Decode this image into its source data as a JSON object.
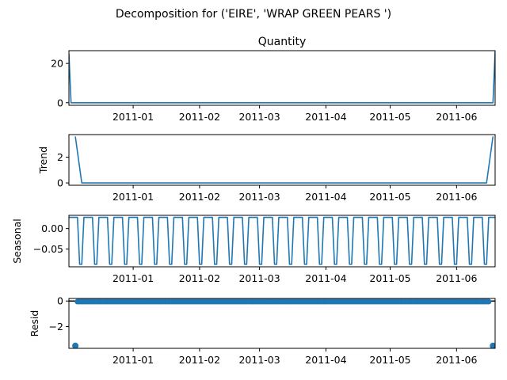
{
  "figure_title": "Decomposition for ('EIRE', 'WRAP GREEN PEARS ')",
  "chart_data": [
    {
      "type": "line",
      "title": "Quantity",
      "ylabel": "",
      "x_range": [
        "2010-12-02",
        "2011-06-19"
      ],
      "ylim": [
        -1.3,
        26.5
      ],
      "yticks": [
        {
          "v": 0,
          "label": "0"
        },
        {
          "v": 20,
          "label": "20"
        }
      ],
      "xticks": [
        "2011-01",
        "2011-02",
        "2011-03",
        "2011-04",
        "2011-05",
        "2011-06"
      ],
      "color": "#1f77b4",
      "series": [
        {
          "x": [
            "2010-12-02",
            "2010-12-03",
            "2011-06-18",
            "2011-06-19"
          ],
          "values": [
            25,
            0,
            0,
            26
          ]
        }
      ]
    },
    {
      "type": "line",
      "title": "",
      "ylabel": "Trend",
      "x_range": [
        "2010-12-02",
        "2011-06-19"
      ],
      "ylim": [
        -0.18,
        3.75
      ],
      "yticks": [
        {
          "v": 0,
          "label": "0"
        },
        {
          "v": 2,
          "label": "2"
        }
      ],
      "xticks": [
        "2011-01",
        "2011-02",
        "2011-03",
        "2011-04",
        "2011-05",
        "2011-06"
      ],
      "color": "#1f77b4",
      "series": [
        {
          "x": [
            "2010-12-05",
            "2010-12-08",
            "2011-06-15",
            "2011-06-18"
          ],
          "values": [
            3.6,
            0,
            0,
            3.6
          ]
        }
      ]
    },
    {
      "type": "line",
      "title": "",
      "ylabel": "Seasonal",
      "x_range": [
        "2010-12-02",
        "2011-06-19"
      ],
      "ylim": [
        -0.093,
        0.032
      ],
      "yticks": [
        {
          "v": 0,
          "label": "0.00"
        },
        {
          "v": -0.05,
          "label": "−0.05"
        }
      ],
      "xticks": [
        "2011-01",
        "2011-02",
        "2011-03",
        "2011-04",
        "2011-05",
        "2011-06"
      ],
      "color": "#1f77b4",
      "seasonal_pattern": [
        0.027,
        0.027,
        0.027,
        0.027,
        0.027,
        -0.087,
        -0.087
      ]
    },
    {
      "type": "scatter",
      "title": "",
      "ylabel": "Resid",
      "x_range": [
        "2010-12-02",
        "2011-06-19"
      ],
      "ylim": [
        -3.7,
        0.2
      ],
      "yticks": [
        {
          "v": 0,
          "label": "0"
        },
        {
          "v": -2,
          "label": "−2"
        }
      ],
      "xticks": [
        "2011-01",
        "2011-02",
        "2011-03",
        "2011-04",
        "2011-05",
        "2011-06"
      ],
      "color": "#1f77b4",
      "zero_line": true,
      "resid_daily_value": -0.05,
      "resid_valid_range": [
        "2010-12-05",
        "2011-06-16"
      ],
      "outliers": [
        {
          "x": "2010-12-05",
          "y": -3.5
        },
        {
          "x": "2011-06-18",
          "y": -3.5
        }
      ]
    }
  ]
}
